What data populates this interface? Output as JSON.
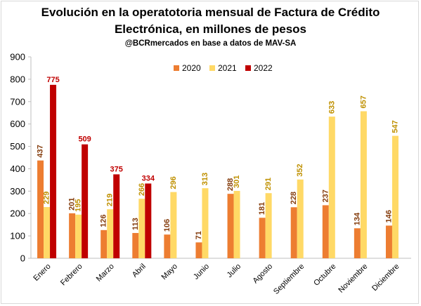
{
  "title_line1": "Evolución en la operatotoria mensual de Factura de Crédito",
  "title_line2": "Electrónica, en millones de pesos",
  "subtitle": "@BCRmercados en base a datos de MAV-SA",
  "colors": {
    "2020": "#ed7d31",
    "2021": "#ffd966",
    "2022": "#c00000"
  },
  "label_colors": {
    "2020": "#843c0c",
    "2021": "#bf9000",
    "2022": "#c00000"
  },
  "chart_data": {
    "type": "bar",
    "categories": [
      "Enero",
      "Febrero",
      "Marzo",
      "Abril",
      "Mayo",
      "Junio",
      "Julio",
      "Agosto",
      "Septiembre",
      "Octubre",
      "Noviembre",
      "Diciembre"
    ],
    "series": [
      {
        "name": "2020",
        "values": [
          437,
          201,
          126,
          113,
          106,
          71,
          288,
          181,
          228,
          237,
          134,
          146
        ]
      },
      {
        "name": "2021",
        "values": [
          229,
          195,
          219,
          266,
          296,
          313,
          301,
          291,
          352,
          633,
          657,
          547
        ]
      },
      {
        "name": "2022",
        "values": [
          775,
          509,
          375,
          334,
          null,
          null,
          null,
          null,
          null,
          null,
          null,
          null
        ]
      }
    ],
    "ylim": [
      0,
      900
    ],
    "yticks": [
      0,
      100,
      200,
      300,
      400,
      500,
      600,
      700,
      800,
      900
    ],
    "legend_position": "top-center",
    "grid": false
  }
}
